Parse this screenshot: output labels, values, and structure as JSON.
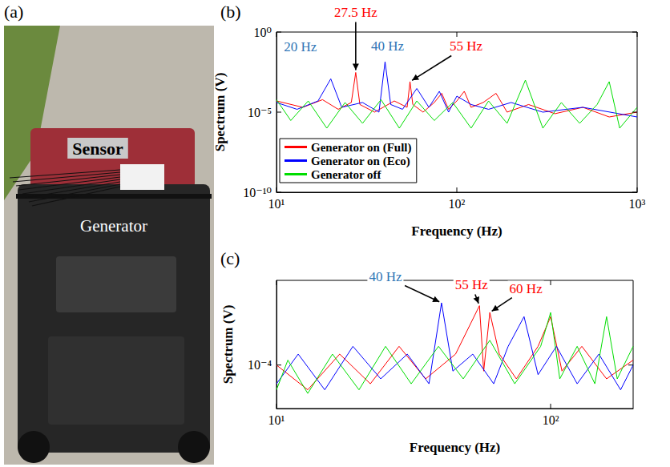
{
  "photo": {
    "title": "(a)",
    "labels": [
      "Sensor",
      "Generator"
    ]
  },
  "chart_data": [
    {
      "type": "line",
      "title": "(b)",
      "x_label": "Frequency (Hz)",
      "y_label": "Spectrum (V)",
      "log": true,
      "grid": false,
      "legend": "lower left",
      "xlim": [
        10,
        1000
      ],
      "xticks": [
        {
          "value": 10,
          "label": "10¹"
        },
        {
          "value": 100,
          "label": "10²"
        },
        {
          "value": 1000,
          "label": "10³"
        }
      ],
      "ylim": [
        1e-10,
        1
      ],
      "yticks": [
        {
          "value": 1e-10,
          "label": "10⁻¹⁰"
        },
        {
          "value": 1e-05,
          "label": "10⁻⁵"
        },
        {
          "value": 1,
          "label": "10⁰"
        }
      ],
      "series": [
        {
          "name": "Generator on (Full)",
          "color": "#ff0000",
          "x": [
            10,
            14,
            18,
            22,
            26,
            27.5,
            29,
            35,
            45,
            53,
            55,
            57,
            65,
            75,
            82.5,
            90,
            100,
            110,
            120,
            140,
            165,
            190,
            250,
            350,
            500,
            700,
            1000
          ],
          "values": [
            5e-05,
            2e-05,
            6e-05,
            1.5e-05,
            4e-05,
            0.003,
            3e-05,
            1e-05,
            5e-05,
            2e-05,
            0.0008,
            3e-05,
            1e-05,
            4e-05,
            0.00015,
            1.5e-05,
            5e-05,
            0.0002,
            2e-05,
            4e-05,
            0.00015,
            1e-05,
            3e-05,
            8e-06,
            2e-05,
            5e-06,
            1e-05
          ]
        },
        {
          "name": "Generator on (Eco)",
          "color": "#0000ff",
          "x": [
            10,
            13,
            17,
            20,
            23,
            30,
            37,
            40,
            43,
            50,
            60,
            70,
            80,
            90,
            100,
            120,
            150,
            200,
            300,
            500,
            1000
          ],
          "values": [
            4e-05,
            1.5e-05,
            5e-05,
            0.0012,
            2e-05,
            4e-05,
            1e-05,
            0.014,
            3e-05,
            1.5e-05,
            0.0003,
            2e-05,
            0.0002,
            1e-05,
            0.0001,
            3e-05,
            1.5e-05,
            4e-05,
            1e-05,
            2e-05,
            5e-06
          ]
        },
        {
          "name": "Generator off",
          "color": "#00dd00",
          "x": [
            10,
            12,
            15,
            19,
            24,
            30,
            38,
            48,
            60,
            75,
            95,
            120,
            150,
            190,
            240,
            300,
            380,
            480,
            600,
            700,
            800,
            1000
          ],
          "values": [
            6e-05,
            3e-06,
            5e-05,
            1e-06,
            4e-05,
            2e-06,
            6e-05,
            1e-06,
            5e-05,
            3e-06,
            4e-05,
            1e-06,
            5e-05,
            2e-06,
            0.001,
            1e-06,
            4e-05,
            2e-06,
            3e-05,
            0.0008,
            1e-06,
            2e-05
          ]
        }
      ],
      "annotations": [
        {
          "text": "20 Hz",
          "x": 20,
          "y": 0.0012,
          "color": "#2e75b6"
        },
        {
          "text": "27.5 Hz",
          "x": 27.5,
          "y": 0.003,
          "color": "#ff0000"
        },
        {
          "text": "40 Hz",
          "x": 40,
          "y": 0.014,
          "color": "#2e75b6"
        },
        {
          "text": "55 Hz",
          "x": 55,
          "y": 0.0008,
          "color": "#ff0000"
        }
      ]
    },
    {
      "type": "line",
      "title": "(c)",
      "x_label": "Frequency (Hz)",
      "y_label": "Spectrum (V)",
      "log": true,
      "grid": false,
      "xlim": [
        10,
        200
      ],
      "xticks": [
        {
          "value": 10,
          "label": "10¹"
        },
        {
          "value": 100,
          "label": "10²"
        }
      ],
      "ylim": [
        2e-05,
        0.0023
      ],
      "yticks": [
        {
          "value": 0.0001,
          "label": "10⁻⁴"
        }
      ],
      "series": [
        {
          "color": "#ff0000",
          "x": [
            10,
            13,
            17,
            22,
            28,
            35,
            45,
            55,
            57,
            60,
            65,
            75,
            90,
            100,
            110,
            130,
            160,
            200
          ],
          "values": [
            0.0001,
            4e-05,
            0.00015,
            5e-05,
            0.0002,
            6e-05,
            0.00015,
            0.0009,
            8e-05,
            0.0007,
            0.00015,
            6e-05,
            0.0002,
            0.0006,
            8e-05,
            0.0002,
            6e-05,
            0.00012
          ]
        },
        {
          "color": "#0000ff",
          "x": [
            10,
            12,
            15,
            19,
            24,
            30,
            36,
            40,
            44,
            52,
            62,
            70,
            80,
            90,
            105,
            125,
            150,
            180,
            200
          ],
          "values": [
            5e-05,
            0.00015,
            4e-05,
            0.0002,
            6e-05,
            0.00015,
            5e-05,
            0.001,
            8e-05,
            0.00015,
            5e-05,
            0.0002,
            0.0006,
            7e-05,
            0.0002,
            5e-05,
            0.00015,
            4e-05,
            0.0001
          ]
        },
        {
          "color": "#00dd00",
          "x": [
            10,
            11,
            13,
            16,
            20,
            25,
            31,
            39,
            48,
            60,
            74,
            92,
            100,
            108,
            125,
            145,
            160,
            175,
            200
          ],
          "values": [
            4e-05,
            0.00012,
            3.5e-05,
            0.00015,
            4e-05,
            0.0002,
            5e-05,
            0.0002,
            6e-05,
            0.00025,
            5e-05,
            0.0002,
            0.0007,
            6e-05,
            0.0002,
            5e-05,
            0.0006,
            6e-05,
            0.0002
          ]
        }
      ],
      "annotations": [
        {
          "text": "40 Hz",
          "x": 40,
          "y": 0.001,
          "color": "#2e75b6"
        },
        {
          "text": "55 Hz",
          "x": 55,
          "y": 0.0009,
          "color": "#ff0000"
        },
        {
          "text": "60 Hz",
          "x": 60,
          "y": 0.0007,
          "color": "#ff0000"
        }
      ]
    }
  ]
}
